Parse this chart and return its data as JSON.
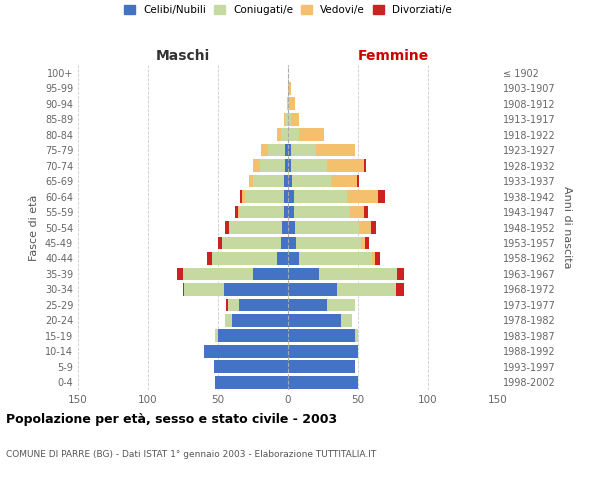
{
  "age_groups": [
    "0-4",
    "5-9",
    "10-14",
    "15-19",
    "20-24",
    "25-29",
    "30-34",
    "35-39",
    "40-44",
    "45-49",
    "50-54",
    "55-59",
    "60-64",
    "65-69",
    "70-74",
    "75-79",
    "80-84",
    "85-89",
    "90-94",
    "95-99",
    "100+"
  ],
  "birth_years": [
    "1998-2002",
    "1993-1997",
    "1988-1992",
    "1983-1987",
    "1978-1982",
    "1973-1977",
    "1968-1972",
    "1963-1967",
    "1958-1962",
    "1953-1957",
    "1948-1952",
    "1943-1947",
    "1938-1942",
    "1933-1937",
    "1928-1932",
    "1923-1927",
    "1918-1922",
    "1913-1917",
    "1908-1912",
    "1903-1907",
    "≤ 1902"
  ],
  "maschi": {
    "celibi": [
      52,
      53,
      60,
      50,
      40,
      35,
      46,
      25,
      8,
      5,
      4,
      3,
      3,
      3,
      2,
      2,
      0,
      0,
      0,
      0,
      0
    ],
    "coniugati": [
      0,
      0,
      0,
      2,
      5,
      8,
      28,
      50,
      46,
      42,
      38,
      32,
      28,
      22,
      18,
      12,
      5,
      2,
      1,
      0,
      0
    ],
    "vedovi": [
      0,
      0,
      0,
      0,
      0,
      0,
      0,
      0,
      0,
      0,
      0,
      1,
      2,
      3,
      5,
      5,
      3,
      1,
      0,
      0,
      0
    ],
    "divorziati": [
      0,
      0,
      0,
      0,
      0,
      1,
      1,
      4,
      4,
      3,
      3,
      2,
      1,
      0,
      0,
      0,
      0,
      0,
      0,
      0,
      0
    ]
  },
  "femmine": {
    "nubili": [
      50,
      48,
      50,
      48,
      38,
      28,
      35,
      22,
      8,
      6,
      5,
      4,
      4,
      3,
      2,
      2,
      0,
      0,
      0,
      0,
      0
    ],
    "coniugate": [
      0,
      0,
      0,
      2,
      8,
      20,
      42,
      56,
      52,
      46,
      46,
      40,
      38,
      28,
      26,
      18,
      8,
      2,
      1,
      0,
      0
    ],
    "vedove": [
      0,
      0,
      0,
      0,
      0,
      0,
      0,
      0,
      2,
      3,
      8,
      10,
      22,
      18,
      26,
      28,
      18,
      6,
      4,
      2,
      0
    ],
    "divorziate": [
      0,
      0,
      0,
      0,
      0,
      0,
      6,
      5,
      4,
      3,
      4,
      3,
      5,
      2,
      2,
      0,
      0,
      0,
      0,
      0,
      0
    ]
  },
  "colors": {
    "celibi": "#4472c4",
    "coniugati": "#c5d9a0",
    "vedovi": "#f5c06e",
    "divorziati": "#cc2222"
  },
  "xlim": 150,
  "title_main": "Popolazione per età, sesso e stato civile - 2003",
  "title_sub": "COMUNE DI PARRE (BG) - Dati ISTAT 1° gennaio 2003 - Elaborazione TUTTITALIA.IT",
  "legend_labels": [
    "Celibi/Nubili",
    "Coniugati/e",
    "Vedovi/e",
    "Divorziati/e"
  ],
  "ylabel_left": "Fasce di età",
  "ylabel_right": "Anni di nascita",
  "xlabel_maschi": "Maschi",
  "xlabel_femmine": "Femmine"
}
